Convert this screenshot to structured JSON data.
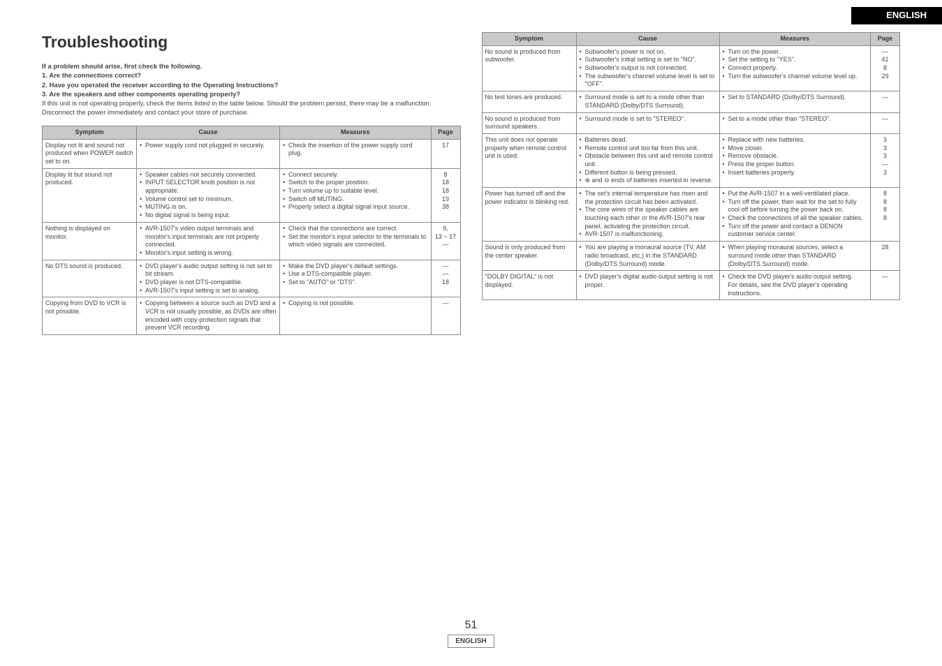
{
  "lang_tag": "ENGLISH",
  "title": "Troubleshooting",
  "intro": {
    "line1": "If a problem should arise, first check the following.",
    "line2": "1. Are the connections correct?",
    "line3": "2. Have you operated the receiver according to the Operating Instructions?",
    "line4": "3. Are the speakers and other components operating properly?",
    "para1": "If this unit is not operating properly, check the items listed in the table below. Should the problem persist, there may be a malfunction. Disconnect the power immediately and contact your store of purchase."
  },
  "headers": {
    "symptom": "Symptom",
    "cause": "Cause",
    "measures": "Measures",
    "page": "Page"
  },
  "left_rows": [
    {
      "symptom": "Display not lit and sound not produced when POWER switch set to on.",
      "causes": [
        "Power supply cord not plugged in securely."
      ],
      "measures": [
        "Check the insertion of the power supply cord plug."
      ],
      "pages": [
        "17"
      ]
    },
    {
      "symptom": "Display lit but sound not produced.",
      "causes": [
        "Speaker cables not securely connected.",
        "INPUT SELECTOR knob position is not appropriate.",
        "Volume control set to minimum.",
        "MUTING is on.",
        "No digital signal is being input."
      ],
      "measures": [
        "Connect securely.",
        "Switch to the proper position.",
        "Turn volume up to suitable level.",
        "Switch off MUTING.",
        "Properly select a digital signal input source."
      ],
      "pages": [
        "8",
        "18",
        "18",
        "19",
        "38"
      ]
    },
    {
      "symptom": "Nothing is displayed on monitor.",
      "causes": [
        "AVR-1507's video output terminals and monitor's input terminals are not properly connected.",
        "Monitor's input setting is wrong."
      ],
      "measures": [
        "Check that the connections are correct.",
        "Set the monitor's input selector to the terminals to which video signals are connected."
      ],
      "pages": [
        "9,<br>13 ~ 17",
        "—"
      ]
    },
    {
      "symptom": "No DTS sound is produced.",
      "causes": [
        "DVD player's audio output setting is not set to bit stream.",
        "DVD player is not DTS-compatible.",
        "AVR-1507's input setting is set to analog."
      ],
      "measures": [
        "Make the DVD player's default settings.",
        "Use a DTS-compatible player.",
        "Set to \"AUTO\" or \"DTS\"."
      ],
      "pages": [
        "—",
        "—",
        "18"
      ]
    },
    {
      "symptom": "Copying from DVD to VCR is not possible.",
      "causes": [
        "Copying between a source such as DVD and a VCR is not usually possible, as DVDs are often encoded with copy-protection signals that prevent VCR recording."
      ],
      "measures": [
        "Copying is not possible."
      ],
      "pages": [
        "—"
      ]
    }
  ],
  "right_rows": [
    {
      "symptom": "No sound is produced from subwoofer.",
      "causes": [
        "Subwoofer's power is not on.",
        "Subwoofer's initial setting is set to \"NO\".",
        "Subwoofer's output is not connected.",
        "The subwoofer's channel volume level is set to \"OFF\"."
      ],
      "measures": [
        "Turn on the power.",
        "Set the setting to \"YES\".",
        "Connect properly.",
        "Turn the subwoofer's channel volume level up."
      ],
      "pages": [
        "—",
        "41",
        "8",
        "29"
      ]
    },
    {
      "symptom": "No test tones are produced.",
      "causes": [
        "Surround mode is set to a mode other than STANDARD (Dolby/DTS Surround)."
      ],
      "measures": [
        "Set to STANDARD (Dolby/DTS Surround)."
      ],
      "pages": [
        "—"
      ]
    },
    {
      "symptom": "No sound is produced from surround speakers.",
      "causes": [
        "Surround mode is set to \"STEREO\"."
      ],
      "measures": [
        "Set to a mode other than \"STEREO\"."
      ],
      "pages": [
        "—"
      ]
    },
    {
      "symptom": "This unit does not operate properly when remote control unit is used.",
      "causes": [
        "Batteries dead.",
        "Remote control unit too far from this unit.",
        "Obstacle between this unit and remote control unit.",
        "Different button is being pressed.",
        "⊕ and ⊖ ends of batteries inserted in reverse."
      ],
      "measures": [
        "Replace with new batteries.",
        "Move closer.",
        "Remove obstacle.",
        "Press the proper button.",
        "Insert batteries properly."
      ],
      "pages": [
        "3",
        "3",
        "3",
        "—",
        "3"
      ]
    },
    {
      "symptom": "Power has turned off and the power indicator is blinking red.",
      "causes": [
        "The set's internal temperature has risen and the protection circuit has been activated.",
        "The core wires of the speaker cables are touching each other or the AVR-1507's rear panel, activating the protection circuit.",
        "AVR-1507 is malfunctioning."
      ],
      "measures": [
        "Put the AVR-1507 in a well-ventilated place.",
        "Turn off the power, then wait for the set to fully cool off before turning the power back on.",
        "Check the connections of all the speaker cables.",
        "Turn off the power and contact a DENON customer service center."
      ],
      "pages": [
        "8",
        "8",
        "8",
        "8"
      ]
    },
    {
      "symptom": "Sound is only produced from the center speaker.",
      "causes": [
        "You are playing a monaural source (TV, AM radio broadcast, etc.) in the STANDARD (Dolby/DTS Surround) mode."
      ],
      "measures": [
        "When playing monaural sources, select a surround mode other than STANDARD (Dolby/DTS Surround) mode."
      ],
      "pages": [
        "28"
      ]
    },
    {
      "symptom": "\"DOLBY DIGITAL\" is not displayed.",
      "causes": [
        "DVD player's digital audio output setting is not proper."
      ],
      "measures": [
        "Check the DVD player's audio output setting.<br>For details, see the DVD player's operating instructions."
      ],
      "pages": [
        "—"
      ]
    }
  ],
  "footer": {
    "page_number": "51",
    "lang": "ENGLISH"
  }
}
